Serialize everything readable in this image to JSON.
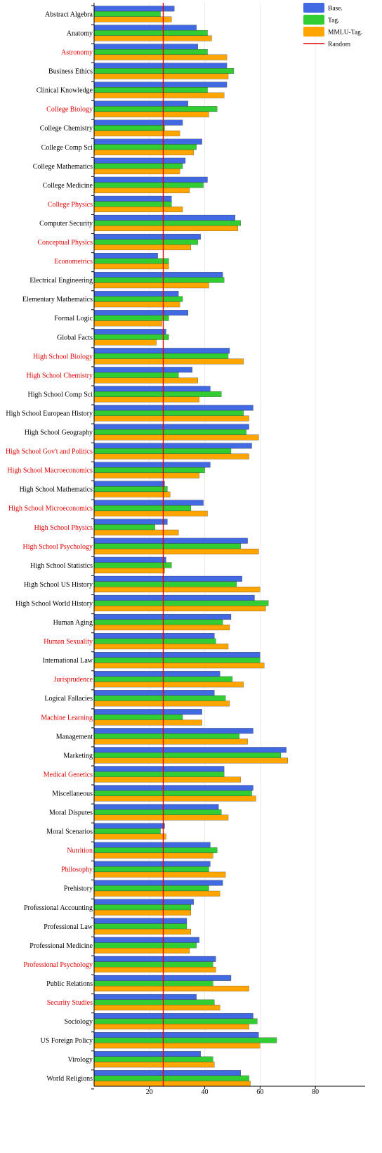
{
  "chart_data": {
    "type": "bar",
    "orientation": "horizontal",
    "categories": [
      "Abstract Algebra",
      "Anatomy",
      "Astronomy",
      "Business Ethics",
      "Clinical Knowledge",
      "College Biology",
      "College Chemistry",
      "College Comp Sci",
      "College Mathematics",
      "College Medicine",
      "College Physics",
      "Computer Security",
      "Conceptual Physics",
      "Econometrics",
      "Electrical Engineering",
      "Elementary Mathematics",
      "Formal Logic",
      "Global Facts",
      "High School Biology",
      "High School Chemistry",
      "High School Comp Sci",
      "High School European History",
      "High School Geography",
      "High School Gov't and Politics",
      "High School Macroeconomics",
      "High School Mathematics",
      "High School Microeconomics",
      "High School Physics",
      "High School Psychology",
      "High School Statistics",
      "High School US History",
      "High School World History",
      "Human Aging",
      "Human Sexuality",
      "International Law",
      "Jurisprudence",
      "Logical Fallacies",
      "Machine Learning",
      "Management",
      "Marketing",
      "Medical Genetics",
      "Miscellaneous",
      "Moral Disputes",
      "Moral Scenarios",
      "Nutrition",
      "Philosophy",
      "Prehistory",
      "Professional Accounting",
      "Professional Law",
      "Professional Medicine",
      "Professional Psychology",
      "Public Relations",
      "Security Studies",
      "Sociology",
      "US Foreign Policy",
      "Virology",
      "World Religions"
    ],
    "highlighted_categories": [
      "Astronomy",
      "College Biology",
      "College Physics",
      "Conceptual Physics",
      "Econometrics",
      "High School Biology",
      "High School Chemistry",
      "High School Gov't and Politics",
      "High School Macroeconomics",
      "High School Microeconomics",
      "High School Physics",
      "High School Psychology",
      "Human Sexuality",
      "Jurisprudence",
      "Machine Learning",
      "Medical Genetics",
      "Nutrition",
      "Philosophy",
      "Professional Psychology",
      "Security Studies"
    ],
    "series": [
      {
        "name": "Base.",
        "color": "#4169e1",
        "values": [
          29,
          37,
          37.5,
          48,
          48,
          34,
          32,
          39,
          33,
          41,
          28,
          51,
          38.5,
          23,
          46.5,
          30.5,
          34,
          26,
          49,
          35.5,
          42,
          57.5,
          56,
          57,
          42,
          25.5,
          39.5,
          26.5,
          55.5,
          26,
          53.5,
          58,
          49.5,
          43.5,
          60,
          45.5,
          43.5,
          39,
          57.5,
          69.5,
          47,
          57.5,
          45,
          25.5,
          42,
          42,
          46.5,
          36,
          33.5,
          38,
          44,
          49.5,
          37,
          57.5,
          59.5,
          38.5,
          53
        ]
      },
      {
        "name": "Tag.",
        "color": "#32cd32",
        "values": [
          24,
          41,
          41,
          50.5,
          41,
          44.5,
          25.5,
          37,
          32,
          39.5,
          28,
          53,
          37.5,
          27,
          47,
          32,
          27,
          27,
          48.5,
          30.5,
          46,
          54,
          55,
          49.5,
          40,
          26.5,
          35,
          22,
          53,
          28,
          51.5,
          63,
          46.5,
          44,
          60,
          50,
          47.5,
          32,
          52.5,
          67.5,
          47,
          57,
          46,
          24,
          44.5,
          41.5,
          41.5,
          35,
          33.5,
          37,
          43,
          43,
          43.5,
          59,
          66,
          43,
          56
        ]
      },
      {
        "name": "MMLU-Tag.",
        "color": "#ffa500",
        "values": [
          28,
          42.5,
          48,
          48.5,
          47,
          41.5,
          31,
          36,
          31,
          34.5,
          32,
          52,
          35,
          27,
          41.5,
          31,
          24.5,
          22.5,
          54,
          37.5,
          38,
          56,
          59.5,
          56,
          38,
          27.5,
          41,
          30.5,
          59.5,
          25.5,
          60,
          62,
          49,
          48.5,
          61.5,
          54,
          49,
          39,
          55.5,
          70,
          53,
          58.5,
          48.5,
          26,
          43,
          47.5,
          45.5,
          35,
          35,
          34.5,
          44,
          56,
          45.5,
          56,
          60,
          43.5,
          56.5
        ]
      }
    ],
    "reference_line": {
      "name": "Random",
      "value": 25,
      "color": "#e00000"
    },
    "x_ticks": [
      20,
      40,
      60,
      80
    ],
    "xlim": [
      0,
      98
    ],
    "grid": "vertical",
    "legend_position": "top-right",
    "title": "",
    "xlabel": "",
    "ylabel": ""
  },
  "colors": {
    "label_default": "#000000",
    "label_highlight": "#e00000",
    "grid": "#e6e6e6",
    "axis": "#000000"
  }
}
